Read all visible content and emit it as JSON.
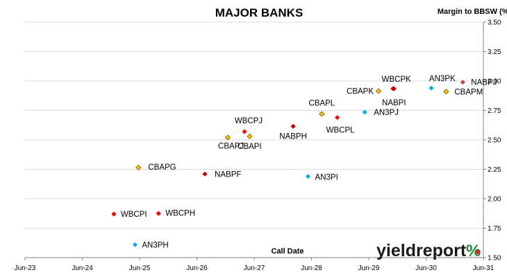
{
  "chart_data": {
    "type": "scatter",
    "title": "MAJOR BANKS",
    "ylabel": "Margin to BBSW (%)",
    "xlabel": "Call Date",
    "ylim": [
      1.5,
      3.5
    ],
    "yticks": [
      "1.50",
      "1.75",
      "2.00",
      "2.25",
      "2.50",
      "2.75",
      "3.00",
      "3.25",
      "3.50"
    ],
    "xticks": [
      "Jun-23",
      "Jun-24",
      "Jun-25",
      "Jun-26",
      "Jun-27",
      "Jun-28",
      "Jun-29",
      "Jun-30",
      "Jun-31"
    ],
    "grid": "horizontal",
    "colors": {
      "WBC": "#ff0000",
      "CBA": "#ffc000",
      "NAB": "#c00000",
      "ANZ": "#00b0f0",
      "NABPJ": "#c0504d"
    },
    "points": [
      {
        "label": "WBCPI",
        "group": "WBC",
        "x": 2024.55,
        "y": 1.87
      },
      {
        "label": "WBCPH",
        "group": "WBC",
        "x": 2025.33,
        "y": 1.875
      },
      {
        "label": "AN3PH",
        "group": "ANZ",
        "x": 2024.92,
        "y": 1.61
      },
      {
        "label": "CBAPG",
        "group": "CBA",
        "x": 2024.98,
        "y": 2.265
      },
      {
        "label": "NABPF",
        "group": "NAB",
        "x": 2026.14,
        "y": 2.21
      },
      {
        "label": "CBAPJ",
        "group": "CBA",
        "x": 2026.54,
        "y": 2.52
      },
      {
        "label": "WBCPJ",
        "group": "WBC",
        "x": 2026.83,
        "y": 2.57
      },
      {
        "label": "CBAPI",
        "group": "CBA",
        "x": 2026.92,
        "y": 2.53
      },
      {
        "label": "NABPH",
        "group": "NAB",
        "x": 2027.68,
        "y": 2.615
      },
      {
        "label": "AN3PI",
        "group": "ANZ",
        "x": 2027.94,
        "y": 2.19
      },
      {
        "label": "CBAPL",
        "group": "CBA",
        "x": 2028.18,
        "y": 2.72
      },
      {
        "label": "WBCPL",
        "group": "WBC",
        "x": 2028.45,
        "y": 2.69
      },
      {
        "label": "AN3PJ",
        "group": "ANZ",
        "x": 2028.93,
        "y": 2.735
      },
      {
        "label": "CBAPK",
        "group": "CBA",
        "x": 2029.17,
        "y": 2.915
      },
      {
        "label": "WBCPK",
        "group": "WBC",
        "x": 2029.42,
        "y": 2.935
      },
      {
        "label": "NABPI",
        "group": "NAB",
        "x": 2029.44,
        "y": 2.935
      },
      {
        "label": "AN3PK",
        "group": "ANZ",
        "x": 2030.09,
        "y": 2.94
      },
      {
        "label": "CBAPM",
        "group": "CBA",
        "x": 2030.35,
        "y": 2.91
      },
      {
        "label": "NABPJ",
        "group": "NABPJ",
        "x": 2030.64,
        "y": 2.99
      }
    ]
  },
  "logo": {
    "text": "yieldreport",
    "pct": "%"
  }
}
